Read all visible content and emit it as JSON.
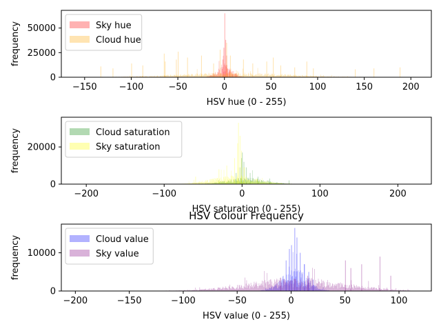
{
  "chart_data": [
    {
      "type": "histogram",
      "xlabel": "HSV hue (0 - 255)",
      "ylabel": "frequency",
      "xlim": [
        -175,
        222
      ],
      "ylim": [
        0,
        68000
      ],
      "xticks": [
        -150,
        -100,
        -50,
        0,
        50,
        100,
        150,
        200
      ],
      "yticks": [
        0,
        25000,
        50000
      ],
      "legend_position": "upper-left",
      "series": [
        {
          "name": "Sky hue",
          "color": "#ff0000",
          "opacity": 0.3,
          "peaks": [
            [
              -2,
              18000
            ],
            [
              -1,
              30000
            ],
            [
              0,
              65000
            ],
            [
              1,
              38000
            ],
            [
              2,
              22000
            ],
            [
              3,
              9000
            ],
            [
              5,
              7000
            ],
            [
              8,
              6000
            ],
            [
              12,
              4000
            ]
          ],
          "profile": {
            "center": 0,
            "spread": 8,
            "height": 12000,
            "range": [
              -20,
              25
            ]
          }
        },
        {
          "name": "Cloud hue",
          "color": "#ffa500",
          "opacity": 0.3,
          "peaks": [
            [
              -133,
              11000
            ],
            [
              -120,
              9000
            ],
            [
              -100,
              14000
            ],
            [
              -88,
              12000
            ],
            [
              -64,
              16000
            ],
            [
              -65,
              24000
            ],
            [
              -52,
              18000
            ],
            [
              -50,
              26000
            ],
            [
              -40,
              20000
            ],
            [
              -25,
              22000
            ],
            [
              -12,
              14000
            ],
            [
              -5,
              28000
            ],
            [
              2,
              35000
            ],
            [
              6,
              22000
            ],
            [
              20,
              18000
            ],
            [
              30,
              14000
            ],
            [
              45,
              16000
            ],
            [
              52,
              20000
            ],
            [
              60,
              12000
            ],
            [
              75,
              10000
            ],
            [
              88,
              16000
            ],
            [
              95,
              9000
            ],
            [
              140,
              8000
            ],
            [
              160,
              9000
            ],
            [
              188,
              10000
            ]
          ],
          "profile": {
            "center": 10,
            "spread": 60,
            "height": 4000,
            "range": [
              -170,
              220
            ]
          }
        }
      ]
    },
    {
      "type": "histogram",
      "xlabel": "HSV saturation (0 - 255)",
      "ylabel": "frequency",
      "xlim": [
        -232,
        243
      ],
      "ylim": [
        0,
        36000
      ],
      "xticks": [
        -200,
        -100,
        0,
        100,
        200
      ],
      "yticks": [
        0,
        20000
      ],
      "legend_position": "upper-left",
      "series": [
        {
          "name": "Cloud saturation",
          "color": "#008000",
          "opacity": 0.3,
          "peaks": [
            [
              -8,
              6000
            ],
            [
              -3,
              9000
            ],
            [
              -1,
              14000
            ],
            [
              0,
              17000
            ],
            [
              2,
              12000
            ],
            [
              5,
              9000
            ],
            [
              10,
              6000
            ],
            [
              20,
              4000
            ],
            [
              35,
              3000
            ],
            [
              60,
              2000
            ]
          ],
          "profile": {
            "center": 5,
            "spread": 25,
            "height": 3000,
            "range": [
              -120,
              110
            ]
          }
        },
        {
          "name": "Sky saturation",
          "color": "#ffff00",
          "opacity": 0.3,
          "peaks": [
            [
              -10,
              14000
            ],
            [
              -6,
              22000
            ],
            [
              -5,
              33000
            ],
            [
              -3,
              26000
            ],
            [
              -1,
              18000
            ],
            [
              2,
              9000
            ],
            [
              -20,
              10000
            ],
            [
              -30,
              8000
            ],
            [
              -60,
              4000
            ]
          ],
          "profile": {
            "center": -10,
            "spread": 30,
            "height": 4000,
            "range": [
              -140,
              110
            ]
          }
        }
      ]
    },
    {
      "type": "histogram",
      "title": "HSV Colour Frequency",
      "xlabel": "HSV value (0 - 255)",
      "ylabel": "frequency",
      "xlim": [
        -213,
        130
      ],
      "ylim": [
        0,
        17500
      ],
      "xticks": [
        -200,
        -150,
        -100,
        -50,
        0,
        50,
        100
      ],
      "yticks": [
        0,
        10000
      ],
      "legend_position": "upper-left",
      "series": [
        {
          "name": "Cloud value",
          "color": "#0000ff",
          "opacity": 0.3,
          "peaks": [
            [
              -5,
              8000
            ],
            [
              -2,
              11000
            ],
            [
              0,
              12000
            ],
            [
              3,
              16500
            ],
            [
              5,
              14000
            ],
            [
              8,
              10000
            ],
            [
              12,
              7000
            ],
            [
              16,
              5000
            ],
            [
              20,
              3000
            ]
          ],
          "profile": {
            "center": 3,
            "spread": 12,
            "height": 5000,
            "range": [
              -190,
              110
            ]
          }
        },
        {
          "name": "Sky value",
          "color": "#800080",
          "opacity": 0.3,
          "peaks": [
            [
              50,
              8000
            ],
            [
              55,
              6000
            ],
            [
              65,
              7000
            ],
            [
              82,
              9000
            ],
            [
              92,
              4000
            ],
            [
              -10,
              3500
            ],
            [
              15,
              4000
            ]
          ],
          "profile": {
            "center": 5,
            "spread": 45,
            "height": 3000,
            "range": [
              -190,
              110
            ]
          }
        }
      ]
    }
  ]
}
